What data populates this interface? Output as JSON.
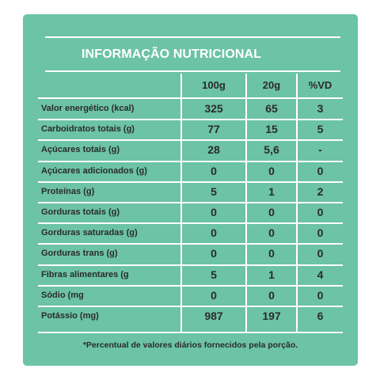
{
  "title": "INFORMAÇÃO NUTRICIONAL",
  "columns": [
    "100g",
    "20g",
    "%VD"
  ],
  "rows": [
    {
      "label": "Valor energético (kcal)",
      "v100": "325",
      "v20": "65",
      "vd": "3"
    },
    {
      "label": "Carboidratos totais (g)",
      "v100": "77",
      "v20": "15",
      "vd": "5"
    },
    {
      "label": "Açúcares totais (g)",
      "v100": "28",
      "v20": "5,6",
      "vd": "-"
    },
    {
      "label": "Açúcares adicionados (g)",
      "v100": "0",
      "v20": "0",
      "vd": "0"
    },
    {
      "label": "Proteínas (g)",
      "v100": "5",
      "v20": "1",
      "vd": "2"
    },
    {
      "label": "Gorduras totais (g)",
      "v100": "0",
      "v20": "0",
      "vd": "0"
    },
    {
      "label": "Gorduras saturadas (g)",
      "v100": "0",
      "v20": "0",
      "vd": "0"
    },
    {
      "label": "Gorduras trans (g)",
      "v100": "0",
      "v20": "0",
      "vd": "0"
    },
    {
      "label": "Fibras alimentares (g",
      "v100": "5",
      "v20": "1",
      "vd": "4"
    },
    {
      "label": "Sódio (mg",
      "v100": "0",
      "v20": "0",
      "vd": "0"
    },
    {
      "label": "Potássio (mg)",
      "v100": "987",
      "v20": "197",
      "vd": "6"
    }
  ],
  "footnote": "*Percentual de valores diários fornecidos pela porção.",
  "colors": {
    "card": "#6cc3a6",
    "lines": "#ffffff",
    "text": "#2b2b2b"
  }
}
